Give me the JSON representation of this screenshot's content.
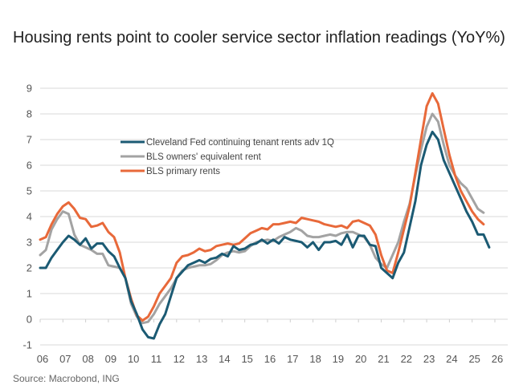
{
  "header": {
    "title": "Housing rents point to cooler service sector inflation readings (YoY%)"
  },
  "footer": {
    "source": "Source: Macrobond, ING"
  },
  "chart_data": {
    "type": "line",
    "title": "Housing rents point to cooler service sector inflation readings (YoY%)",
    "xlabel": "",
    "ylabel": "",
    "ylim": [
      -1,
      9
    ],
    "xlim": [
      2006,
      2026.6
    ],
    "grid": true,
    "legend_position": "upper-left-inside",
    "y_ticks": [
      9,
      8,
      7,
      6,
      5,
      4,
      3,
      2,
      1,
      0,
      -1
    ],
    "x_ticks": [
      {
        "year": 2006,
        "label": "06"
      },
      {
        "year": 2007,
        "label": "07"
      },
      {
        "year": 2008,
        "label": "08"
      },
      {
        "year": 2009,
        "label": "09"
      },
      {
        "year": 2010,
        "label": "10"
      },
      {
        "year": 2011,
        "label": "11"
      },
      {
        "year": 2012,
        "label": "12"
      },
      {
        "year": 2013,
        "label": "13"
      },
      {
        "year": 2014,
        "label": "14"
      },
      {
        "year": 2015,
        "label": "15"
      },
      {
        "year": 2016,
        "label": "16"
      },
      {
        "year": 2017,
        "label": "17"
      },
      {
        "year": 2018,
        "label": "18"
      },
      {
        "year": 2019,
        "label": "19"
      },
      {
        "year": 2020,
        "label": "20"
      },
      {
        "year": 2021,
        "label": "21"
      },
      {
        "year": 2022,
        "label": "22"
      },
      {
        "year": 2023,
        "label": "23"
      },
      {
        "year": 2024,
        "label": "24"
      },
      {
        "year": 2025,
        "label": "25"
      },
      {
        "year": 2026,
        "label": "26"
      }
    ],
    "series": [
      {
        "name": "Cleveland Fed continuing tenant rents adv 1Q",
        "color": "#1b5a73",
        "x": [
          2006.0,
          2006.25,
          2006.5,
          2006.75,
          2007.0,
          2007.25,
          2007.5,
          2007.75,
          2008.0,
          2008.25,
          2008.5,
          2008.75,
          2009.0,
          2009.25,
          2009.5,
          2009.75,
          2010.0,
          2010.25,
          2010.5,
          2010.75,
          2011.0,
          2011.25,
          2011.5,
          2011.75,
          2012.0,
          2012.25,
          2012.5,
          2012.75,
          2013.0,
          2013.25,
          2013.5,
          2013.75,
          2014.0,
          2014.25,
          2014.5,
          2014.75,
          2015.0,
          2015.25,
          2015.5,
          2015.75,
          2016.0,
          2016.25,
          2016.5,
          2016.75,
          2017.0,
          2017.25,
          2017.5,
          2017.75,
          2018.0,
          2018.25,
          2018.5,
          2018.75,
          2019.0,
          2019.25,
          2019.5,
          2019.75,
          2020.0,
          2020.25,
          2020.5,
          2020.75,
          2021.0,
          2021.25,
          2021.5,
          2021.75,
          2022.0,
          2022.25,
          2022.5,
          2022.75,
          2023.0,
          2023.25,
          2023.5,
          2023.75,
          2024.0,
          2024.25,
          2024.5,
          2024.75,
          2025.0,
          2025.25,
          2025.5,
          2025.75
        ],
        "values": [
          2.0,
          2.0,
          2.4,
          2.7,
          3.0,
          3.25,
          3.1,
          2.9,
          3.15,
          2.75,
          2.95,
          2.95,
          2.65,
          2.45,
          2.0,
          1.6,
          0.7,
          0.2,
          -0.4,
          -0.7,
          -0.75,
          -0.2,
          0.2,
          0.9,
          1.6,
          1.85,
          2.1,
          2.2,
          2.3,
          2.2,
          2.35,
          2.4,
          2.55,
          2.45,
          2.85,
          2.7,
          2.75,
          2.9,
          2.95,
          3.1,
          2.95,
          3.1,
          2.95,
          3.2,
          3.1,
          3.05,
          3.0,
          2.8,
          3.0,
          2.7,
          3.0,
          3.0,
          3.05,
          2.9,
          3.3,
          2.8,
          3.25,
          3.25,
          2.9,
          2.85,
          2.0,
          1.8,
          1.6,
          2.2,
          2.6,
          3.6,
          4.6,
          6.0,
          6.8,
          7.3,
          7.0,
          6.2,
          5.7,
          5.2,
          4.7,
          4.2,
          3.8,
          3.3,
          3.3,
          2.8
        ]
      },
      {
        "name": "BLS owners' equivalent rent",
        "color": "#a3a3a3",
        "x": [
          2006.0,
          2006.25,
          2006.5,
          2006.75,
          2007.0,
          2007.25,
          2007.5,
          2007.75,
          2008.0,
          2008.25,
          2008.5,
          2008.75,
          2009.0,
          2009.25,
          2009.5,
          2009.75,
          2010.0,
          2010.25,
          2010.5,
          2010.75,
          2011.0,
          2011.25,
          2011.5,
          2011.75,
          2012.0,
          2012.25,
          2012.5,
          2012.75,
          2013.0,
          2013.25,
          2013.5,
          2013.75,
          2014.0,
          2014.25,
          2014.5,
          2014.75,
          2015.0,
          2015.25,
          2015.5,
          2015.75,
          2016.0,
          2016.25,
          2016.5,
          2016.75,
          2017.0,
          2017.25,
          2017.5,
          2017.75,
          2018.0,
          2018.25,
          2018.5,
          2018.75,
          2019.0,
          2019.25,
          2019.5,
          2019.75,
          2020.0,
          2020.25,
          2020.5,
          2020.75,
          2021.0,
          2021.25,
          2021.5,
          2021.75,
          2022.0,
          2022.25,
          2022.5,
          2022.75,
          2023.0,
          2023.25,
          2023.5,
          2023.75,
          2024.0,
          2024.25,
          2024.5,
          2024.75,
          2025.0,
          2025.25,
          2025.5
        ],
        "values": [
          2.5,
          2.7,
          3.5,
          3.9,
          4.2,
          4.1,
          3.3,
          2.9,
          2.8,
          2.7,
          2.55,
          2.55,
          2.1,
          2.05,
          2.0,
          1.6,
          0.6,
          0.1,
          -0.15,
          -0.1,
          0.2,
          0.6,
          0.9,
          1.2,
          1.6,
          1.9,
          2.0,
          2.05,
          2.1,
          2.1,
          2.15,
          2.3,
          2.5,
          2.6,
          2.65,
          2.6,
          2.65,
          2.85,
          3.0,
          3.05,
          3.1,
          3.05,
          3.2,
          3.3,
          3.4,
          3.55,
          3.45,
          3.25,
          3.2,
          3.2,
          3.25,
          3.3,
          3.25,
          3.35,
          3.4,
          3.4,
          3.3,
          3.2,
          2.9,
          2.4,
          2.15,
          2.0,
          2.5,
          3.0,
          3.8,
          4.5,
          5.6,
          6.6,
          7.5,
          8.0,
          7.7,
          6.8,
          6.0,
          5.6,
          5.3,
          5.1,
          4.7,
          4.3,
          4.15
        ]
      },
      {
        "name": "BLS primary rents",
        "color": "#e8693a",
        "x": [
          2006.0,
          2006.25,
          2006.5,
          2006.75,
          2007.0,
          2007.25,
          2007.5,
          2007.75,
          2008.0,
          2008.25,
          2008.5,
          2008.75,
          2009.0,
          2009.25,
          2009.5,
          2009.75,
          2010.0,
          2010.25,
          2010.5,
          2010.75,
          2011.0,
          2011.25,
          2011.5,
          2011.75,
          2012.0,
          2012.25,
          2012.5,
          2012.75,
          2013.0,
          2013.25,
          2013.5,
          2013.75,
          2014.0,
          2014.25,
          2014.5,
          2014.75,
          2015.0,
          2015.25,
          2015.5,
          2015.75,
          2016.0,
          2016.25,
          2016.5,
          2016.75,
          2017.0,
          2017.25,
          2017.5,
          2017.75,
          2018.0,
          2018.25,
          2018.5,
          2018.75,
          2019.0,
          2019.25,
          2019.5,
          2019.75,
          2020.0,
          2020.25,
          2020.5,
          2020.75,
          2021.0,
          2021.25,
          2021.5,
          2021.75,
          2022.0,
          2022.25,
          2022.5,
          2022.75,
          2023.0,
          2023.25,
          2023.5,
          2023.75,
          2024.0,
          2024.25,
          2024.5,
          2024.75,
          2025.0,
          2025.25,
          2025.5
        ],
        "values": [
          3.1,
          3.2,
          3.7,
          4.1,
          4.4,
          4.55,
          4.3,
          3.95,
          3.9,
          3.6,
          3.65,
          3.75,
          3.4,
          3.2,
          2.6,
          1.6,
          0.8,
          0.15,
          -0.05,
          0.1,
          0.5,
          1.0,
          1.3,
          1.6,
          2.2,
          2.45,
          2.5,
          2.6,
          2.75,
          2.65,
          2.7,
          2.85,
          2.9,
          2.95,
          2.9,
          2.95,
          3.15,
          3.35,
          3.45,
          3.55,
          3.5,
          3.7,
          3.7,
          3.75,
          3.8,
          3.75,
          3.95,
          3.9,
          3.85,
          3.8,
          3.7,
          3.65,
          3.6,
          3.65,
          3.55,
          3.8,
          3.85,
          3.75,
          3.65,
          3.3,
          2.5,
          1.9,
          1.8,
          2.6,
          3.5,
          4.4,
          5.7,
          7.0,
          8.3,
          8.8,
          8.4,
          7.4,
          6.4,
          5.6,
          5.0,
          4.6,
          4.2,
          3.9,
          3.7
        ]
      }
    ]
  }
}
